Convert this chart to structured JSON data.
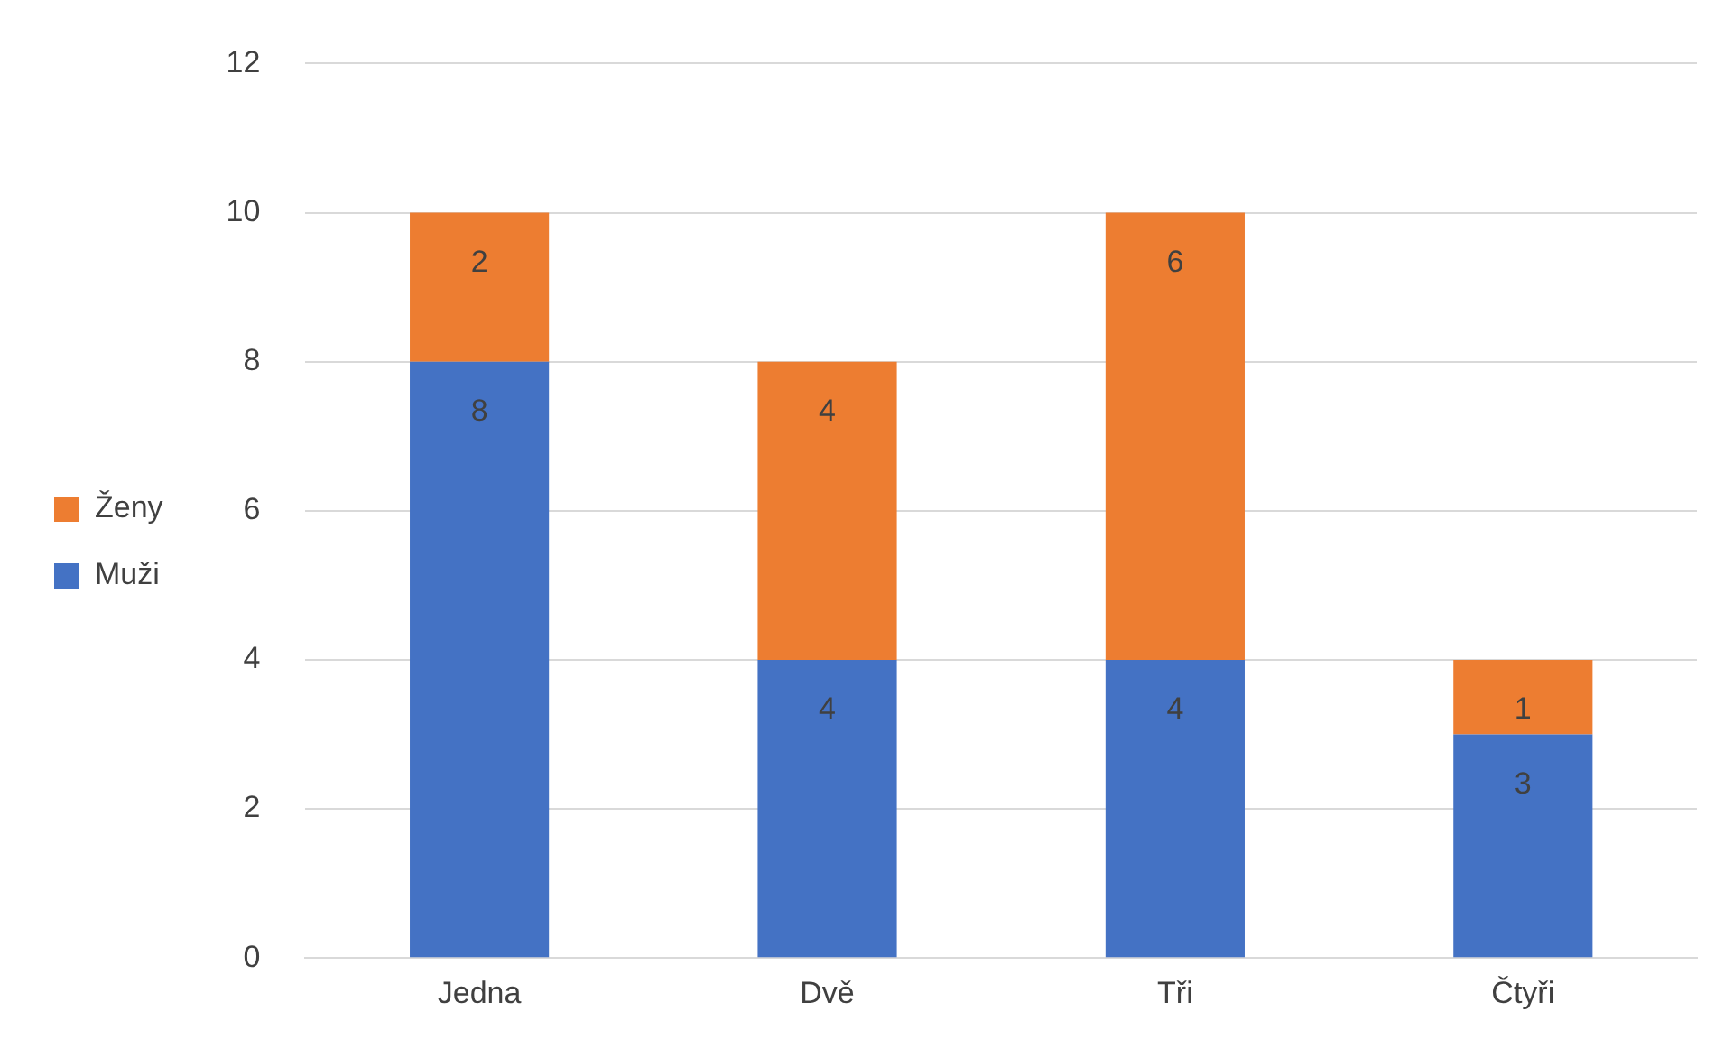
{
  "chart_data": {
    "type": "bar",
    "stacked": true,
    "categories": [
      "Jedna",
      "Dvě",
      "Tři",
      "Čtyři"
    ],
    "series": [
      {
        "name": "Muži",
        "color": "#4472c4",
        "values": [
          8,
          4,
          4,
          3
        ]
      },
      {
        "name": "Ženy",
        "color": "#ed7d31",
        "values": [
          2,
          4,
          6,
          1
        ]
      }
    ],
    "ylim": [
      0,
      12
    ],
    "yticks": [
      0,
      2,
      4,
      6,
      8,
      10,
      12
    ],
    "grid": "y",
    "legend": "left",
    "data_labels": true
  }
}
